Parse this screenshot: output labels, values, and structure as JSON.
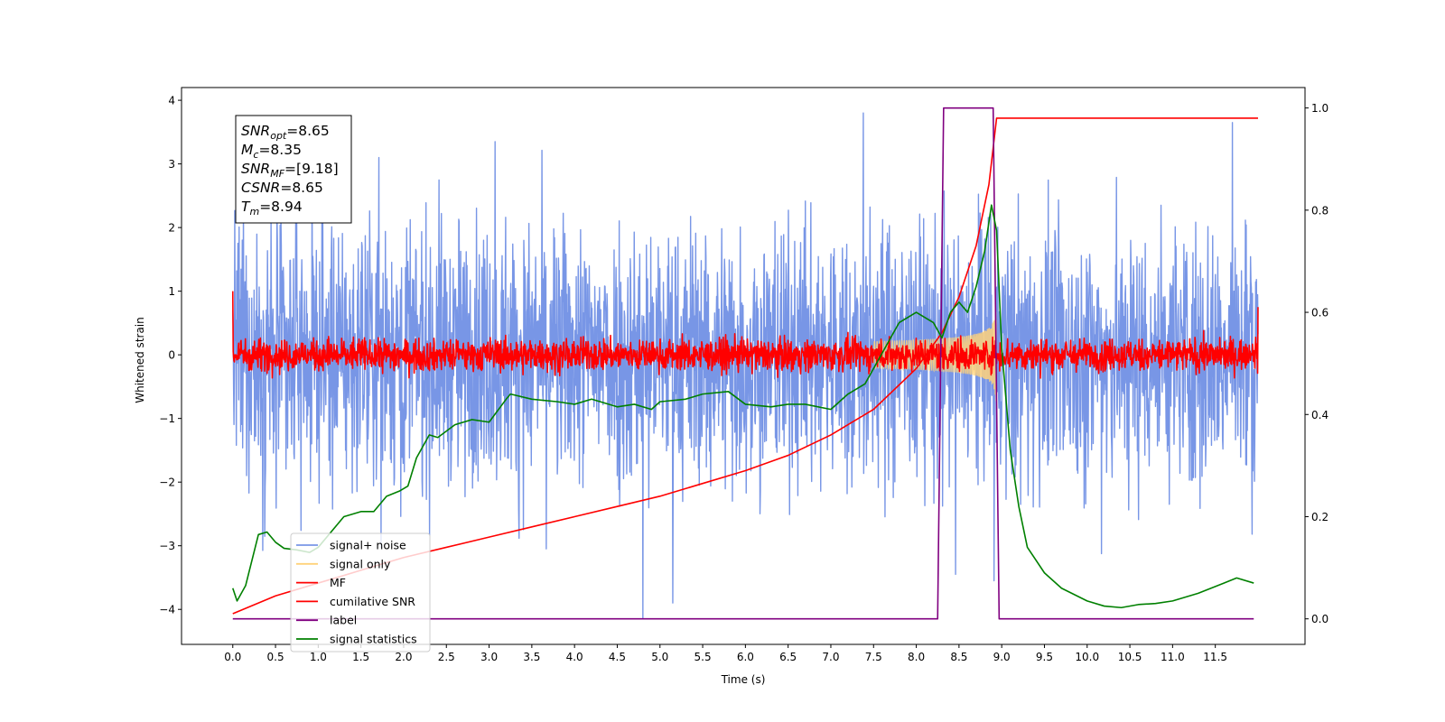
{
  "chart_data": {
    "type": "line",
    "xlabel": "Time (s)",
    "ylabel": "Whitened strain",
    "xlim": [
      -0.6,
      12.55
    ],
    "ylim": [
      -4.55,
      4.2
    ],
    "y2lim": [
      -0.05,
      1.04
    ],
    "xticks": [
      "0.0",
      "0.5",
      "1.0",
      "1.5",
      "2.0",
      "2.5",
      "3.0",
      "3.5",
      "4.0",
      "4.5",
      "5.0",
      "5.5",
      "6.0",
      "6.5",
      "7.0",
      "7.5",
      "8.0",
      "8.5",
      "9.0",
      "9.5",
      "10.0",
      "10.5",
      "11.0",
      "11.5"
    ],
    "yticks": [
      "4",
      "3",
      "2",
      "1",
      "0",
      "−1",
      "−2",
      "−3",
      "−4"
    ],
    "y2ticks": [
      "1.0",
      "0.8",
      "0.6",
      "0.4",
      "0.2",
      "0.0"
    ],
    "grid": false,
    "legend_position": "lower-left",
    "annotation": {
      "lines": [
        {
          "sym": "SNR",
          "sub": "opt",
          "val": "=8.65"
        },
        {
          "sym": "M",
          "sub": "c",
          "val": "=8.35"
        },
        {
          "sym": "SNR",
          "sub": "MF",
          "val": "=[9.18]"
        },
        {
          "sym": "CSNR",
          "sub": "",
          "val": "=8.65"
        },
        {
          "sym": "T",
          "sub": "m",
          "val": "=8.94"
        }
      ]
    },
    "series": [
      {
        "name": "signal+ noise",
        "color": "#7896e6",
        "axis": "left",
        "style": "noise",
        "x_range": [
          0,
          12
        ],
        "mean": 0.0,
        "std": 1.0,
        "spikes": [
          [
            1.71,
            3.1
          ],
          [
            3.07,
            3.35
          ],
          [
            7.38,
            3.8
          ],
          [
            11.7,
            3.65
          ],
          [
            4.8,
            -4.15
          ],
          [
            5.15,
            -3.9
          ],
          [
            8.46,
            -3.45
          ],
          [
            8.91,
            -3.55
          ]
        ]
      },
      {
        "name": "signal only",
        "color": "#ffd27a",
        "axis": "left",
        "style": "chirp",
        "x_range": [
          7.5,
          8.94
        ],
        "amplitude_max": 1.1
      },
      {
        "name": "MF",
        "color": "#ff0000",
        "axis": "left",
        "style": "noise",
        "x_range": [
          0,
          12
        ],
        "mean": 0.0,
        "std": 0.12,
        "endpoints": [
          1.0,
          0.75
        ]
      },
      {
        "name": "cumilative SNR",
        "color": "#ff0000",
        "axis": "right",
        "x": [
          0.0,
          0.5,
          1.0,
          1.5,
          2.0,
          2.5,
          3.0,
          3.5,
          4.0,
          4.5,
          5.0,
          5.5,
          6.0,
          6.5,
          7.0,
          7.5,
          8.0,
          8.3,
          8.5,
          8.7,
          8.85,
          8.94,
          12.0
        ],
        "y": [
          0.01,
          0.045,
          0.07,
          0.095,
          0.12,
          0.14,
          0.16,
          0.18,
          0.2,
          0.22,
          0.24,
          0.265,
          0.29,
          0.32,
          0.36,
          0.41,
          0.49,
          0.56,
          0.63,
          0.73,
          0.85,
          0.98,
          0.98
        ]
      },
      {
        "name": "label",
        "color": "#800080",
        "axis": "right",
        "x": [
          0.0,
          8.25,
          8.32,
          8.9,
          8.97,
          11.95
        ],
        "y": [
          0.0,
          0.0,
          1.0,
          1.0,
          0.0,
          0.0
        ]
      },
      {
        "name": "signal statistics",
        "color": "#008000",
        "axis": "right",
        "x": [
          0.0,
          0.05,
          0.15,
          0.3,
          0.4,
          0.5,
          0.6,
          0.75,
          0.9,
          1.0,
          1.15,
          1.3,
          1.5,
          1.65,
          1.8,
          1.95,
          2.05,
          2.15,
          2.3,
          2.4,
          2.6,
          2.8,
          3.0,
          3.2,
          3.25,
          3.5,
          3.8,
          4.0,
          4.2,
          4.5,
          4.7,
          4.9,
          5.0,
          5.3,
          5.5,
          5.8,
          6.0,
          6.3,
          6.5,
          6.7,
          7.0,
          7.2,
          7.4,
          7.6,
          7.8,
          8.0,
          8.2,
          8.3,
          8.4,
          8.5,
          8.6,
          8.7,
          8.8,
          8.88,
          8.94,
          9.0,
          9.1,
          9.2,
          9.3,
          9.5,
          9.7,
          10.0,
          10.2,
          10.4,
          10.6,
          10.8,
          11.0,
          11.3,
          11.6,
          11.75,
          11.95
        ],
        "y": [
          0.06,
          0.035,
          0.065,
          0.165,
          0.17,
          0.15,
          0.138,
          0.135,
          0.13,
          0.14,
          0.17,
          0.2,
          0.21,
          0.21,
          0.24,
          0.25,
          0.26,
          0.315,
          0.36,
          0.355,
          0.38,
          0.39,
          0.385,
          0.43,
          0.44,
          0.43,
          0.425,
          0.42,
          0.43,
          0.415,
          0.42,
          0.41,
          0.425,
          0.43,
          0.44,
          0.445,
          0.42,
          0.415,
          0.42,
          0.42,
          0.41,
          0.44,
          0.46,
          0.52,
          0.58,
          0.6,
          0.58,
          0.55,
          0.6,
          0.62,
          0.6,
          0.65,
          0.72,
          0.81,
          0.76,
          0.53,
          0.33,
          0.22,
          0.14,
          0.09,
          0.06,
          0.035,
          0.025,
          0.022,
          0.028,
          0.03,
          0.035,
          0.05,
          0.07,
          0.08,
          0.07
        ]
      }
    ]
  }
}
